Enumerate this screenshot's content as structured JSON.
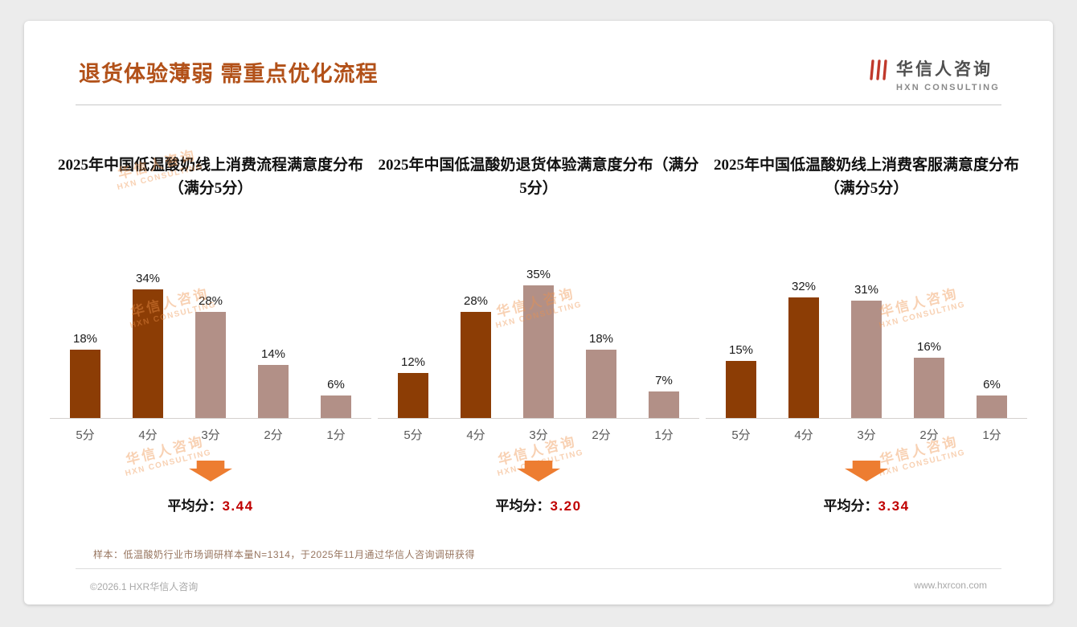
{
  "page": {
    "title": "退货体验薄弱 需重点优化流程"
  },
  "logo": {
    "cn": "华信人咨询",
    "en": "HXN CONSULTING"
  },
  "watermark": {
    "cn": "华信人咨询",
    "en": "HXN CONSULTING"
  },
  "colors": {
    "title_accent": "#B25119",
    "bar_dark": "#8C3D05",
    "bar_light": "#B29087",
    "arrow": "#ED7D31",
    "avg_value_color": "#C00000"
  },
  "chart_data": [
    {
      "type": "bar",
      "title": "2025年中国低温酸奶线上消费流程满意度分布（满分5分）",
      "categories": [
        "5分",
        "4分",
        "3分",
        "2分",
        "1分"
      ],
      "values": [
        18,
        34,
        28,
        14,
        6
      ],
      "unit": "%",
      "ylim": [
        0,
        40
      ],
      "grid": false,
      "avg_label": "平均分：",
      "avg_value": "3.44"
    },
    {
      "type": "bar",
      "title": "2025年中国低温酸奶退货体验满意度分布（满分5分）",
      "categories": [
        "5分",
        "4分",
        "3分",
        "2分",
        "1分"
      ],
      "values": [
        12,
        28,
        35,
        18,
        7
      ],
      "unit": "%",
      "ylim": [
        0,
        40
      ],
      "grid": false,
      "avg_label": "平均分：",
      "avg_value": "3.20"
    },
    {
      "type": "bar",
      "title": "2025年中国低温酸奶线上消费客服满意度分布（满分5分）",
      "categories": [
        "5分",
        "4分",
        "3分",
        "2分",
        "1分"
      ],
      "values": [
        15,
        32,
        31,
        16,
        6
      ],
      "unit": "%",
      "ylim": [
        0,
        40
      ],
      "grid": false,
      "avg_label": "平均分：",
      "avg_value": "3.34"
    }
  ],
  "footnote": "样本：低温酸奶行业市场调研样本量N=1314，于2025年11月通过华信人咨询调研获得",
  "footer": {
    "left": "©2026.1 HXR华信人咨询",
    "right": "www.hxrcon.com"
  }
}
